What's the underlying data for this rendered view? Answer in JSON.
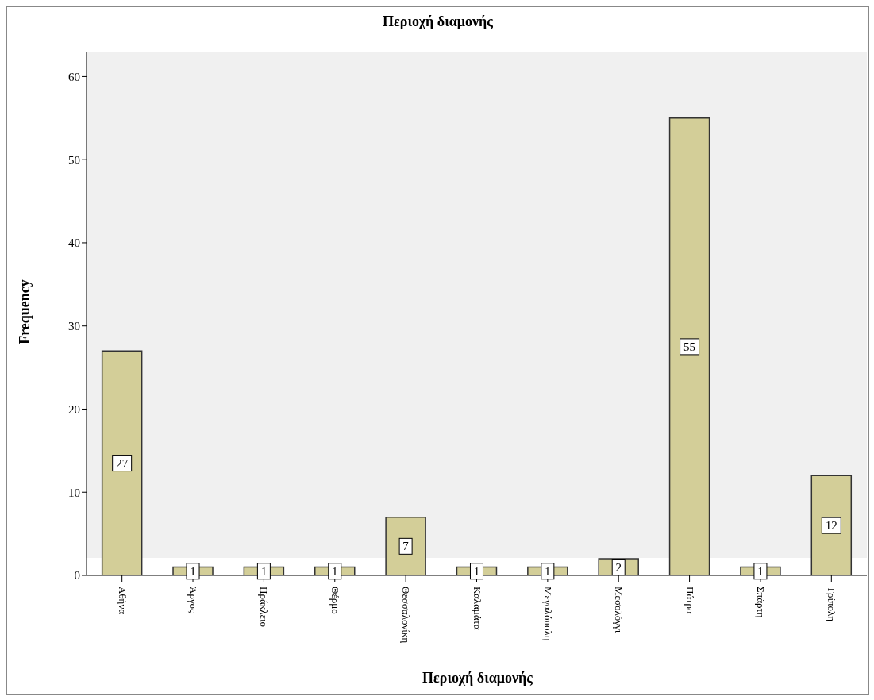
{
  "chart_data": {
    "type": "bar",
    "title": "Περιοχή διαμονής",
    "xlabel": "Περιοχή διαμονής",
    "ylabel": "Frequency",
    "categories": [
      "Αθήνα",
      "Άργος",
      "Ηράκλειο",
      "Θέρμο",
      "Θεσσαλονίκη",
      "Καλαμάτα",
      "Μεγαλόπολη",
      "Μεσολόγγι",
      "Πάτρα",
      "Σπάρτη",
      "Τρίπολη"
    ],
    "values": [
      27,
      1,
      1,
      1,
      7,
      1,
      1,
      2,
      55,
      1,
      12
    ],
    "color": "#d3ce98",
    "ylim": [
      0,
      63
    ],
    "yticks": [
      0,
      10,
      20,
      30,
      40,
      50,
      60
    ],
    "grid": false,
    "legend": false,
    "data_labels": true
  }
}
